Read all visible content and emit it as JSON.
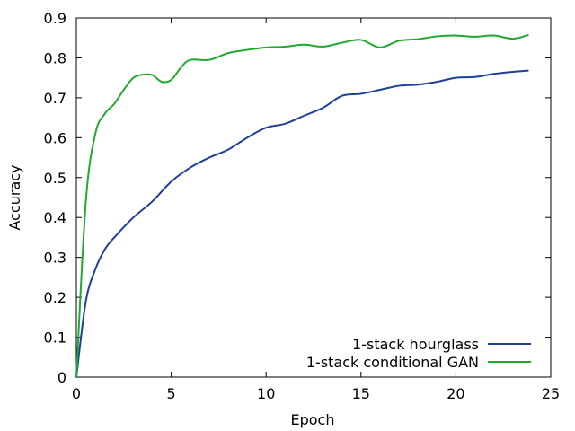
{
  "chart_data": {
    "type": "line",
    "title": "",
    "xlabel": "Epoch",
    "ylabel": "Accuracy",
    "xlim": [
      0,
      25
    ],
    "ylim": [
      0,
      0.9
    ],
    "xticks": [
      0,
      5,
      10,
      15,
      20,
      25
    ],
    "xtick_labels": [
      "0",
      "5",
      "10",
      "15",
      "20",
      "25"
    ],
    "yticks": [
      0,
      0.1,
      0.2,
      0.3,
      0.4,
      0.5,
      0.6,
      0.7,
      0.8,
      0.9
    ],
    "ytick_labels": [
      "0",
      "0.1",
      "0.2",
      "0.3",
      "0.4",
      "0.5",
      "0.6",
      "0.7",
      "0.8",
      "0.9"
    ],
    "grid": false,
    "legend_position": "bottom-right",
    "series": [
      {
        "name": "1-stack hourglass",
        "color": "#1f3f99",
        "x": [
          0,
          0.5,
          1,
          1.5,
          2,
          3,
          4,
          5,
          6,
          7,
          8,
          9,
          10,
          11,
          12,
          13,
          14,
          15,
          16,
          17,
          18,
          19,
          20,
          21,
          22,
          23,
          23.8
        ],
        "y": [
          0,
          0.19,
          0.27,
          0.32,
          0.35,
          0.4,
          0.44,
          0.49,
          0.525,
          0.55,
          0.57,
          0.6,
          0.625,
          0.635,
          0.655,
          0.675,
          0.705,
          0.71,
          0.72,
          0.73,
          0.733,
          0.74,
          0.75,
          0.752,
          0.76,
          0.765,
          0.768
        ]
      },
      {
        "name": "1-stack conditional GAN",
        "color": "#1faa2f",
        "x": [
          0,
          0.5,
          1,
          1.5,
          2,
          2.5,
          3,
          3.5,
          4,
          4.5,
          5,
          5.5,
          6,
          7,
          8,
          9,
          10,
          11,
          12,
          13,
          14,
          15,
          16,
          17,
          18,
          19,
          20,
          21,
          22,
          23,
          23.8
        ],
        "y": [
          0,
          0.44,
          0.61,
          0.66,
          0.685,
          0.72,
          0.75,
          0.758,
          0.757,
          0.74,
          0.745,
          0.775,
          0.795,
          0.795,
          0.812,
          0.82,
          0.826,
          0.828,
          0.833,
          0.828,
          0.838,
          0.845,
          0.826,
          0.843,
          0.847,
          0.854,
          0.856,
          0.853,
          0.856,
          0.848,
          0.857
        ]
      }
    ]
  }
}
